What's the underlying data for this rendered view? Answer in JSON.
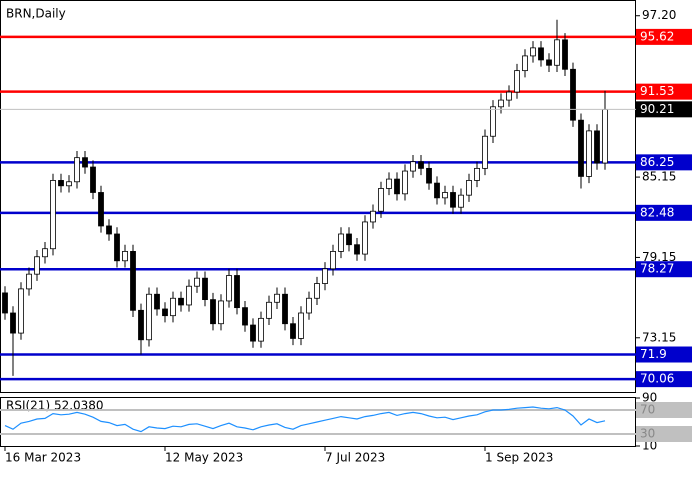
{
  "chart_data": [
    {
      "type": "candlestick",
      "title": "BRN,Daily",
      "categories": [
        "16 Mar 2023",
        null,
        null,
        null,
        null,
        null,
        null,
        null,
        null,
        null,
        null,
        null,
        null,
        null,
        null,
        null,
        null,
        null,
        null,
        null,
        "12 May 2023",
        null,
        null,
        null,
        null,
        null,
        null,
        null,
        null,
        null,
        null,
        null,
        null,
        null,
        null,
        null,
        null,
        null,
        null,
        null,
        "7 Jul 2023",
        null,
        null,
        null,
        null,
        null,
        null,
        null,
        null,
        null,
        null,
        null,
        null,
        null,
        null,
        null,
        null,
        null,
        null,
        null,
        "1 Sep 2023",
        null,
        null,
        null,
        null,
        null,
        null,
        null,
        null,
        null,
        null,
        null,
        null,
        null,
        null,
        null
      ],
      "open": [
        76.5,
        75.0,
        73.5,
        76.8,
        77.9,
        79.2,
        79.8,
        84.9,
        84.5,
        84.8,
        86.6,
        85.9,
        84.0,
        81.5,
        80.9,
        78.9,
        79.6,
        75.2,
        73.0,
        76.4,
        75.3,
        74.8,
        76.1,
        75.6,
        77.0,
        77.6,
        76.0,
        74.2,
        75.9,
        77.8,
        75.4,
        74.1,
        72.9,
        74.6,
        75.8,
        76.4,
        74.2,
        73.1,
        75.0,
        76.1,
        77.2,
        78.3,
        79.6,
        80.9,
        80.1,
        79.4,
        81.8,
        82.6,
        84.3,
        85.0,
        83.9,
        85.6,
        86.3,
        85.8,
        84.7,
        83.6,
        84.0,
        82.9,
        83.8,
        84.9,
        85.8,
        88.2,
        90.4,
        90.9,
        91.5,
        93.1,
        94.2,
        94.8,
        93.9,
        93.5,
        95.4,
        93.2,
        89.4,
        85.2,
        88.6,
        86.2
      ],
      "high": [
        77.0,
        75.5,
        77.3,
        78.4,
        79.7,
        80.3,
        85.4,
        85.4,
        85.3,
        87.1,
        87.1,
        86.4,
        84.5,
        82.0,
        81.4,
        80.1,
        80.1,
        75.7,
        76.9,
        76.9,
        75.8,
        76.6,
        76.6,
        77.5,
        78.1,
        78.1,
        76.5,
        76.4,
        78.3,
        78.3,
        75.9,
        74.6,
        75.1,
        76.3,
        76.9,
        76.9,
        74.7,
        75.5,
        76.6,
        77.7,
        78.8,
        80.1,
        81.4,
        81.4,
        80.6,
        82.3,
        83.1,
        84.8,
        85.5,
        85.5,
        86.1,
        86.8,
        86.8,
        86.3,
        85.2,
        84.5,
        84.5,
        84.3,
        85.4,
        86.3,
        88.7,
        90.9,
        91.4,
        92.0,
        93.6,
        94.7,
        95.3,
        95.3,
        94.4,
        96.9,
        95.9,
        93.7,
        89.9,
        89.1,
        89.1,
        91.6
      ],
      "low": [
        74.5,
        70.3,
        73.0,
        76.3,
        77.4,
        78.7,
        79.3,
        84.0,
        84.0,
        84.3,
        85.4,
        83.5,
        81.0,
        80.4,
        78.4,
        78.4,
        74.7,
        71.9,
        72.5,
        74.8,
        74.3,
        74.3,
        75.1,
        75.1,
        76.5,
        75.5,
        73.7,
        73.7,
        75.4,
        74.9,
        73.6,
        72.4,
        72.4,
        74.1,
        75.3,
        73.7,
        72.6,
        72.6,
        74.5,
        75.6,
        76.7,
        77.8,
        79.1,
        79.6,
        78.9,
        78.9,
        81.3,
        82.1,
        83.8,
        83.4,
        83.4,
        85.1,
        85.3,
        84.2,
        83.1,
        83.1,
        82.4,
        82.4,
        83.3,
        84.4,
        85.3,
        87.7,
        89.9,
        90.4,
        91.0,
        92.6,
        93.7,
        93.4,
        93.0,
        93.0,
        92.7,
        88.9,
        84.3,
        84.7,
        85.7,
        85.7
      ],
      "close": [
        75.0,
        73.5,
        76.8,
        77.9,
        79.2,
        79.8,
        84.9,
        84.5,
        84.8,
        86.6,
        85.9,
        84.0,
        81.5,
        80.9,
        78.9,
        79.6,
        75.2,
        73.0,
        76.4,
        75.3,
        74.8,
        76.1,
        75.6,
        77.0,
        77.6,
        76.0,
        74.2,
        75.9,
        77.8,
        75.4,
        74.1,
        72.9,
        74.6,
        75.8,
        76.4,
        74.2,
        73.1,
        75.0,
        76.1,
        77.2,
        78.3,
        79.6,
        80.9,
        80.1,
        79.4,
        81.8,
        82.6,
        84.3,
        85.0,
        83.9,
        85.6,
        86.3,
        85.8,
        84.7,
        83.6,
        84.0,
        82.9,
        83.8,
        84.9,
        85.8,
        88.2,
        90.4,
        90.9,
        91.5,
        93.1,
        94.2,
        94.8,
        93.9,
        93.5,
        95.4,
        93.2,
        89.4,
        85.2,
        88.6,
        86.2,
        90.2
      ],
      "ylim": [
        69.1,
        98.3
      ],
      "yticks": [
        {
          "value": 97.2,
          "label": "97.20"
        },
        85.15,
        79.15,
        73.15
      ],
      "levels": [
        {
          "value": 95.62,
          "color": "#ff0000"
        },
        {
          "value": 91.53,
          "color": "#ff0000"
        },
        {
          "value": 86.25,
          "color": "#0000cc"
        },
        {
          "value": 82.48,
          "color": "#0000cc"
        },
        {
          "value": 78.27,
          "color": "#0000cc"
        },
        {
          "value": 71.9,
          "color": "#0000cc"
        },
        {
          "value": 70.06,
          "color": "#0000cc"
        }
      ],
      "last_price": {
        "value": 90.21,
        "color": "#000000"
      }
    },
    {
      "type": "line",
      "title": "RSI(21) 52.0380",
      "color": "#1e90ff",
      "values": [
        44,
        38,
        48,
        51,
        55,
        56,
        64,
        62,
        63,
        66,
        63,
        58,
        51,
        49,
        44,
        46,
        38,
        34,
        42,
        40,
        39,
        43,
        42,
        46,
        47,
        43,
        39,
        44,
        48,
        42,
        40,
        37,
        42,
        45,
        47,
        41,
        38,
        44,
        47,
        50,
        53,
        56,
        59,
        57,
        55,
        59,
        61,
        64,
        66,
        61,
        64,
        66,
        64,
        60,
        57,
        58,
        54,
        57,
        60,
        62,
        67,
        70,
        70,
        71,
        73,
        74,
        75,
        73,
        72,
        74,
        70,
        60,
        45,
        55,
        49,
        52
      ],
      "ylim": [
        10,
        90
      ],
      "yticks": [
        90,
        10
      ],
      "levels": [
        {
          "value": 70,
          "color": "#c0c0c0"
        },
        {
          "value": 30,
          "color": "#c0c0c0"
        }
      ]
    }
  ]
}
